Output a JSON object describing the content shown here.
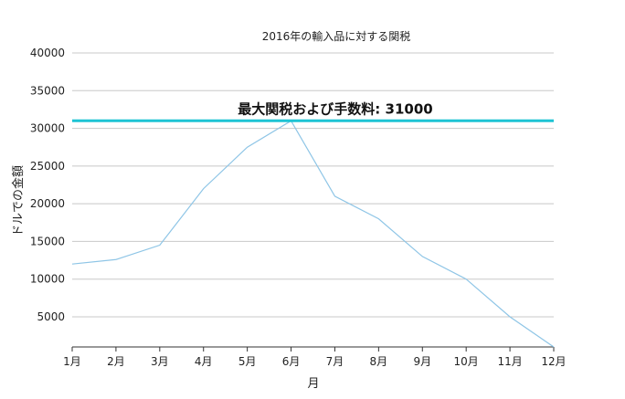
{
  "chart_data": {
    "type": "line",
    "title": "2016年の輸入品に対する関税",
    "xlabel": "月",
    "ylabel": "ドルでの金額",
    "categories": [
      "1月",
      "2月",
      "3月",
      "4月",
      "5月",
      "6月",
      "7月",
      "8月",
      "9月",
      "10月",
      "11月",
      "12月"
    ],
    "series": [
      {
        "values": [
          12000,
          12600,
          14500,
          22000,
          27500,
          31000,
          21000,
          18000,
          13000,
          10000,
          5000,
          1000
        ]
      }
    ],
    "ylim": [
      1000,
      40000
    ],
    "yticks": [
      5000,
      10000,
      15000,
      20000,
      25000,
      30000,
      35000,
      40000
    ],
    "grid": true,
    "reference_line": {
      "value": 31000,
      "label": "最大関税および手数料: 31000"
    },
    "colors": {
      "series": "#8ec5e6",
      "reference_line": "#1ec4d4",
      "grid": "#c8c8c8",
      "axis": "#333333"
    }
  }
}
